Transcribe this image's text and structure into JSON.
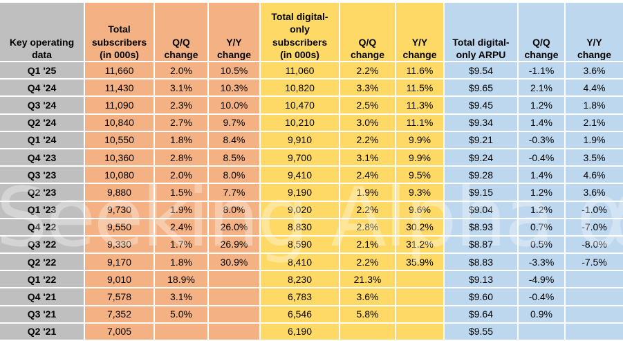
{
  "watermark": {
    "text": "Seeking Alpha",
    "symbol": "α"
  },
  "colors": {
    "label_gray": "#BFBFBF",
    "subscribers_orange": "#F4B183",
    "digital_yellow": "#FFD966",
    "arpu_blue": "#BDD7EE",
    "grid_white": "#FFFFFF",
    "text_black": "#000000"
  },
  "chart_data": {
    "type": "table",
    "title": "Key operating data",
    "columns": [
      {
        "label": "Key operating\ndata",
        "group": "labels",
        "color": "#BFBFBF"
      },
      {
        "label": "Total\nsubscribers\n(in 000s)",
        "group": "total-subscribers",
        "color": "#F4B183"
      },
      {
        "label": "Q/Q\nchange",
        "group": "total-subscribers",
        "color": "#F4B183"
      },
      {
        "label": "Y/Y\nchange",
        "group": "total-subscribers",
        "color": "#F4B183"
      },
      {
        "label": "Total digital-\nonly\nsubscribers\n(in 000s)",
        "group": "digital-only-subscribers",
        "color": "#FFD966"
      },
      {
        "label": "Q/Q\nchange",
        "group": "digital-only-subscribers",
        "color": "#FFD966"
      },
      {
        "label": "Y/Y\nchange",
        "group": "digital-only-subscribers",
        "color": "#FFD966"
      },
      {
        "label": "Total digital-\nonly ARPU",
        "group": "digital-only-arpu",
        "color": "#BDD7EE"
      },
      {
        "label": "Q/Q\nchange",
        "group": "digital-only-arpu",
        "color": "#BDD7EE"
      },
      {
        "label": "Y/Y\nchange",
        "group": "digital-only-arpu",
        "color": "#BDD7EE"
      }
    ],
    "rows": [
      {
        "period": "Q1 '25",
        "values": [
          "11,660",
          "2.0%",
          "10.5%",
          "11,060",
          "2.2%",
          "11.6%",
          "$9.54",
          "-1.1%",
          "3.6%"
        ]
      },
      {
        "period": "Q4 '24",
        "values": [
          "11,430",
          "3.1%",
          "10.3%",
          "10,820",
          "3.3%",
          "11.5%",
          "$9.65",
          "2.1%",
          "4.4%"
        ]
      },
      {
        "period": "Q3 '24",
        "values": [
          "11,090",
          "2.3%",
          "10.0%",
          "10,470",
          "2.5%",
          "11.3%",
          "$9.45",
          "1.2%",
          "1.8%"
        ]
      },
      {
        "period": "Q2 '24",
        "values": [
          "10,840",
          "2.7%",
          "9.7%",
          "10,210",
          "3.0%",
          "11.1%",
          "$9.34",
          "1.4%",
          "2.1%"
        ]
      },
      {
        "period": "Q1 '24",
        "values": [
          "10,550",
          "1.8%",
          "8.4%",
          "9,910",
          "2.2%",
          "9.9%",
          "$9.21",
          "-0.3%",
          "1.9%"
        ]
      },
      {
        "period": "Q4 '23",
        "values": [
          "10,360",
          "2.8%",
          "8.5%",
          "9,700",
          "3.1%",
          "9.9%",
          "$9.24",
          "-0.4%",
          "3.5%"
        ]
      },
      {
        "period": "Q3 '23",
        "values": [
          "10,080",
          "2.0%",
          "8.0%",
          "9,410",
          "2.4%",
          "9.5%",
          "$9.28",
          "1.4%",
          "4.6%"
        ]
      },
      {
        "period": "Q2 '23",
        "values": [
          "9,880",
          "1.5%",
          "7.7%",
          "9,190",
          "1.9%",
          "9.3%",
          "$9.15",
          "1.2%",
          "3.6%"
        ]
      },
      {
        "period": "Q1 '23",
        "values": [
          "9,730",
          "1.9%",
          "8.0%",
          "9,020",
          "2.2%",
          "9.6%",
          "$9.04",
          "1.2%",
          "-1.0%"
        ]
      },
      {
        "period": "Q4 '22",
        "values": [
          "9,550",
          "2.4%",
          "26.0%",
          "8,830",
          "2.8%",
          "30.2%",
          "$8.93",
          "0.7%",
          "-7.0%"
        ]
      },
      {
        "period": "Q3 '22",
        "values": [
          "9,330",
          "1.7%",
          "26.9%",
          "8,590",
          "2.1%",
          "31.2%",
          "$8.87",
          "0.5%",
          "-8.0%"
        ]
      },
      {
        "period": "Q2 '22",
        "values": [
          "9,170",
          "1.8%",
          "30.9%",
          "8,410",
          "2.2%",
          "35.9%",
          "$8.83",
          "-3.3%",
          "-7.5%"
        ]
      },
      {
        "period": "Q1 '22",
        "values": [
          "9,010",
          "18.9%",
          "",
          "8,230",
          "21.3%",
          "",
          "$9.13",
          "-4.9%",
          ""
        ]
      },
      {
        "period": "Q4 '21",
        "values": [
          "7,578",
          "3.1%",
          "",
          "6,783",
          "3.6%",
          "",
          "$9.60",
          "-0.4%",
          ""
        ]
      },
      {
        "period": "Q3 '21",
        "values": [
          "7,352",
          "5.0%",
          "",
          "6,546",
          "5.8%",
          "",
          "$9.64",
          "0.9%",
          ""
        ]
      },
      {
        "period": "Q2 '21",
        "values": [
          "7,005",
          "",
          "",
          "6,190",
          "",
          "",
          "$9.55",
          "",
          ""
        ]
      }
    ]
  }
}
